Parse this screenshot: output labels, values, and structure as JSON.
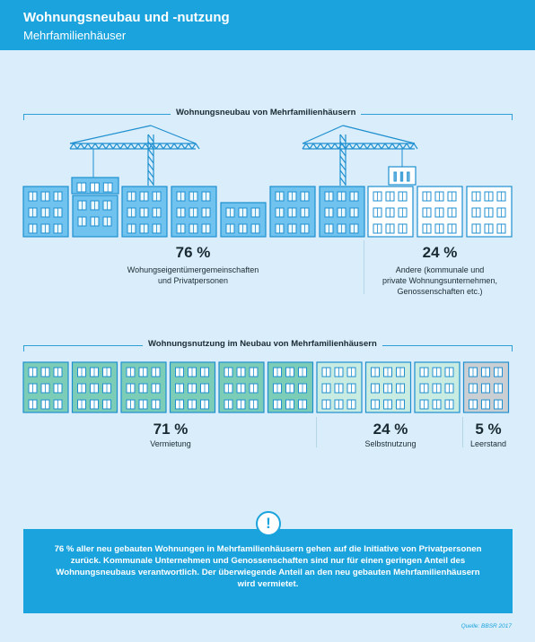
{
  "header": {
    "title": "Wohnungsneubau und -nutzung",
    "subtitle": "Mehrfamilienhäuser"
  },
  "section1": {
    "title": "Wohnungsneubau von Mehrfamilienhäusern",
    "left": {
      "value": "76 %",
      "text": "Wohungseigentümergemeinschaften\nund Privatpersonen"
    },
    "right": {
      "value": "24 %",
      "text": "Andere (kommunale und\nprivate Wohnungsunternehmen,\nGenossenschaften etc.)"
    }
  },
  "section2": {
    "title": "Wohnungsnutzung im Neubau von Mehrfamilienhäusern",
    "items": [
      {
        "value": "71 %",
        "label": "Vermietung"
      },
      {
        "value": "24 %",
        "label": "Selbstnutzung"
      },
      {
        "value": "5 %",
        "label": "Leerstand"
      }
    ]
  },
  "info": {
    "icon": "exclamation-icon",
    "text": "76 % aller neu gebauten Wohnungen in Mehrfamilienhäusern gehen auf die Initiative von Privatpersonen zurück. Kommunale Unternehmen und Genossenschaften sind nur für einen geringen Anteil des Wohnungsneubaus verantwortlich. Der überwiegende Anteil an den neu gebauten Mehrfamilienhäusern wird vermietet."
  },
  "source": "Quelle: BBSR 2017",
  "colors": {
    "accent": "#1aa3dd",
    "building_private": "#6fc3ee",
    "building_other": "#ffffff",
    "use_rented": "#7ccdb8",
    "use_owner": "#c8ece2",
    "use_vacant": "#c9cfd2"
  }
}
